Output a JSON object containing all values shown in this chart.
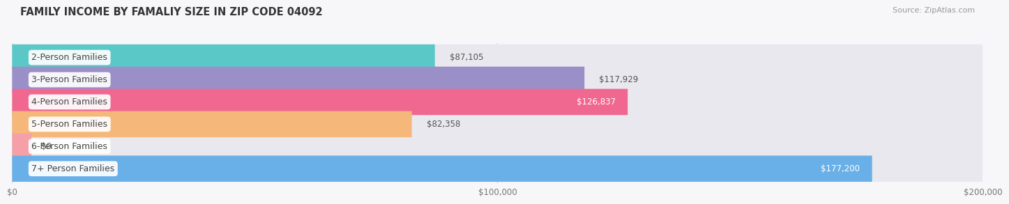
{
  "title": "FAMILY INCOME BY FAMALIY SIZE IN ZIP CODE 04092",
  "source": "Source: ZipAtlas.com",
  "categories": [
    "2-Person Families",
    "3-Person Families",
    "4-Person Families",
    "5-Person Families",
    "6-Person Families",
    "7+ Person Families"
  ],
  "values": [
    87105,
    117929,
    126837,
    82358,
    0,
    177200
  ],
  "bar_colors": [
    "#5bc8c8",
    "#9b8fc8",
    "#f06890",
    "#f5b87a",
    "#f5a0a8",
    "#6ab0e8"
  ],
  "bar_bg_color": "#e8e8ee",
  "value_labels": [
    "$87,105",
    "$117,929",
    "$126,837",
    "$82,358",
    "$0",
    "$177,200"
  ],
  "value_inside": [
    false,
    false,
    true,
    false,
    false,
    true
  ],
  "xlim": [
    0,
    200000
  ],
  "xtick_values": [
    0,
    100000,
    200000
  ],
  "xtick_labels": [
    "$0",
    "$100,000",
    "$200,000"
  ],
  "title_fontsize": 10.5,
  "source_fontsize": 8,
  "label_fontsize": 9,
  "value_fontsize": 8.5,
  "bar_height": 0.6,
  "background_color": "#f7f7f9"
}
